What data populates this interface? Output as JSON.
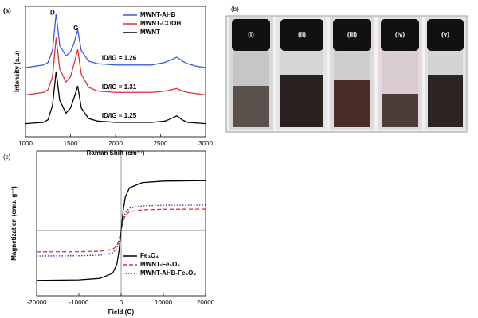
{
  "chart_data": [
    {
      "type": "line",
      "label": "(a)",
      "xlabel": "Raman Shift (cm⁻¹)",
      "ylabel": "Intensity (a.u)",
      "x": [
        1000,
        1100,
        1200,
        1250,
        1300,
        1340,
        1380,
        1450,
        1500,
        1540,
        1580,
        1620,
        1700,
        1800,
        2000,
        2200,
        2400,
        2550,
        2620,
        2680,
        2740,
        2800,
        2900,
        3000
      ],
      "series": [
        {
          "name": "MWNT-AHB",
          "color": "#3b5bdb",
          "style": "solid",
          "values": [
            53,
            54,
            55,
            57,
            66,
            94.5,
            70,
            62,
            65,
            72,
            82,
            66,
            58,
            56,
            55,
            55,
            55,
            57,
            59,
            61,
            58,
            56,
            54,
            53
          ]
        },
        {
          "name": "MWNT-COOH",
          "color": "#e03131",
          "style": "solid",
          "values": [
            32,
            33,
            34,
            36,
            46,
            76,
            52,
            42,
            46,
            56,
            67,
            48,
            38,
            35,
            34,
            34,
            34,
            35,
            36,
            37,
            35,
            34,
            33,
            32
          ]
        },
        {
          "name": "MWNT",
          "color": "#000000",
          "style": "solid",
          "values": [
            10,
            10.5,
            11,
            13,
            24,
            50,
            28,
            18,
            22,
            30,
            39,
            22,
            14,
            12,
            11,
            11,
            11,
            12,
            14,
            16,
            13,
            11,
            10.5,
            10
          ]
        }
      ],
      "xlim": [
        1000,
        3000
      ],
      "xticks": [
        1000,
        1500,
        2000,
        2500,
        3000
      ],
      "ylim": [
        0,
        100
      ],
      "legend": "upper right",
      "annotations": [
        "D",
        "G",
        "ID/IG = 1.26",
        "ID/IG = 1.31",
        "ID/IG = 1.25"
      ]
    },
    {
      "type": "line",
      "label": "(c)",
      "xlabel": "Field (G)",
      "ylabel": "Magnetization (emu. g⁻¹)",
      "x": [
        -20000,
        -10000,
        -5000,
        -2000,
        -1000,
        -500,
        0,
        500,
        1000,
        2000,
        5000,
        10000,
        20000
      ],
      "series": [
        {
          "name": "Fe₃O₄",
          "color": "#000000",
          "style": "solid",
          "values": [
            -49,
            -48.5,
            -47,
            -42,
            -33,
            -20,
            0,
            20,
            33,
            42,
            47,
            48.5,
            49
          ]
        },
        {
          "name": "MWNT-Fe₃O₄",
          "color": "#e03131",
          "style": "dashed",
          "values": [
            -21,
            -20.8,
            -20.3,
            -18.5,
            -15,
            -9,
            0,
            9,
            15,
            18.5,
            20.3,
            20.8,
            21
          ]
        },
        {
          "name": "MWNT-AHB-Fe₃O₄",
          "color": "#1c3f94",
          "style": "dotted",
          "values": [
            -25,
            -24.8,
            -24.2,
            -22,
            -17.5,
            -10.5,
            0,
            10.5,
            17.5,
            22,
            24.2,
            24.8,
            25
          ]
        }
      ],
      "xlim": [
        -20000,
        20000
      ],
      "xticks": [
        -20000,
        -10000,
        0,
        10000,
        20000
      ],
      "ylim": [
        -64,
        78
      ],
      "legend": "lower right"
    }
  ],
  "photo": {
    "label": "(b)",
    "vials": [
      "(i)",
      "(ii)",
      "(iii)",
      "(iv)",
      "(v)"
    ]
  }
}
